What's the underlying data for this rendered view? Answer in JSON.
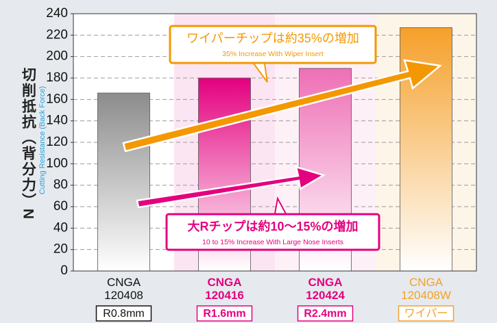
{
  "chart_data": {
    "type": "bar",
    "y_label": "切削抵抗（背分力）N",
    "y_label_en": "Cutting Resistance (Back Force)",
    "categories": [
      "CNGA 120408",
      "CNGA 120416",
      "CNGA 120424",
      "CNGA 120408W"
    ],
    "sublabels": [
      "R0.8mm",
      "R1.6mm",
      "R2.4mm",
      "ワイパー"
    ],
    "values": [
      166,
      180,
      189,
      227
    ],
    "colors": [
      "#8c8c8c",
      "#e4007f",
      "#ee6fb5",
      "#f5a02a"
    ],
    "label_colors": [
      "#111111",
      "#e4007f",
      "#e4007f",
      "#f5a02a"
    ],
    "ylim": [
      0,
      240
    ],
    "yticks": [
      0,
      20,
      40,
      60,
      80,
      100,
      120,
      140,
      160,
      180,
      200,
      220,
      240
    ],
    "grid": true,
    "annotations": [
      {
        "text": "ワイパーチップは約35%の増加",
        "subtext": "35% Increase With Wiper Insert",
        "color": "#f39800"
      },
      {
        "text": "大Rチップは約10～15%の増加",
        "subtext": "10 to 15% Increase With Large Nose Inserts",
        "color": "#e4007f"
      }
    ]
  }
}
